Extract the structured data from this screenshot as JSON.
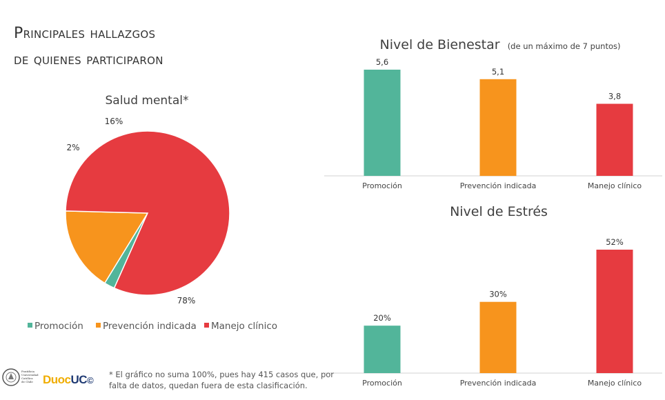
{
  "title": {
    "line1": "Principales hallazgos",
    "line2": "de quienes participaron"
  },
  "footnote": "* El gráfico no suma 100%, pues hay 415 casos que, por falta de datos, quedan fuera de esta clasificación.",
  "logos": {
    "uc_text": "Pontificia Universidad Católica de Chile",
    "duoc_part": "Duoc",
    "uc_part": "UC",
    "mark": "©"
  },
  "chart_data": [
    {
      "type": "pie",
      "title": "Salud mental*",
      "categories": [
        "Promoción",
        "Prevención indicada",
        "Manejo clínico"
      ],
      "values": [
        2,
        16,
        78
      ],
      "labels": [
        "2%",
        "16%",
        "78%"
      ],
      "colors": [
        "#52b59a",
        "#f7941d",
        "#e63b40"
      ],
      "legend": "bottom"
    },
    {
      "type": "bar",
      "title": "Nivel de Bienestar",
      "subtitle": "(de un máximo de 7 puntos)",
      "categories": [
        "Promoción",
        "Prevención indicada",
        "Manejo clínico"
      ],
      "values": [
        5.6,
        5.1,
        3.8
      ],
      "labels": [
        "5,6",
        "5,1",
        "3,8"
      ],
      "ylim": [
        0,
        5.6
      ],
      "colors": [
        "#52b59a",
        "#f7941d",
        "#e63b40"
      ]
    },
    {
      "type": "bar",
      "title": "Nivel de Estrés",
      "categories": [
        "Promoción",
        "Prevención indicada",
        "Manejo clínico"
      ],
      "values": [
        20,
        30,
        52
      ],
      "labels": [
        "20%",
        "30%",
        "52%"
      ],
      "ylim": [
        0,
        52
      ],
      "colors": [
        "#52b59a",
        "#f7941d",
        "#e63b40"
      ]
    }
  ]
}
